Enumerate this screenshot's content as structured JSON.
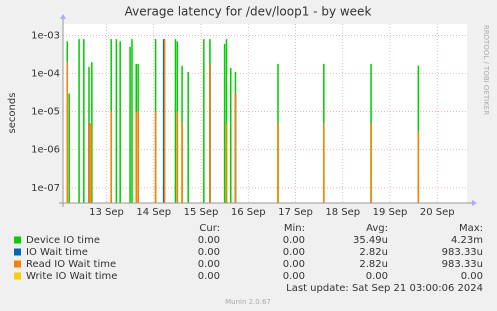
{
  "chart_data": {
    "type": "spike",
    "title": "Average latency for /dev/loop1 - by week",
    "y_label": "seconds",
    "side_text": "RRDTOOL / TOBI OETIKER",
    "log_y": true,
    "grid": true,
    "xlim": [
      12.08,
      20.63
    ],
    "xticks": [
      {
        "value": 13,
        "label": "13 Sep"
      },
      {
        "value": 14,
        "label": "14 Sep"
      },
      {
        "value": 15,
        "label": "15 Sep"
      },
      {
        "value": 16,
        "label": "16 Sep"
      },
      {
        "value": 17,
        "label": "17 Sep"
      },
      {
        "value": 18,
        "label": "18 Sep"
      },
      {
        "value": 19,
        "label": "19 Sep"
      },
      {
        "value": 20,
        "label": "20 Sep"
      }
    ],
    "ylim": [
      4e-08,
      0.002
    ],
    "yticks": [
      {
        "value": 1e-07,
        "label": "1e-07"
      },
      {
        "value": 1e-06,
        "label": "1e-06"
      },
      {
        "value": 1e-05,
        "label": "1e-05"
      },
      {
        "value": 0.0001,
        "label": "1e-04"
      },
      {
        "value": 0.001,
        "label": "1e-03"
      }
    ],
    "series": [
      {
        "name": "Device IO time",
        "color": "#00cc00",
        "x": [
          12.17,
          12.21,
          12.42,
          12.52,
          12.63,
          12.69,
          13.1,
          13.21,
          13.29,
          13.5,
          13.54,
          13.63,
          13.67,
          14.04,
          14.21,
          14.46,
          14.5,
          14.6,
          14.73,
          15.06,
          15.19,
          15.5,
          15.54,
          15.63,
          15.73,
          16.63,
          17.6,
          18.6,
          19.6
        ],
        "values": [
          0.0007,
          3e-05,
          0.0008,
          0.0008,
          0.00015,
          0.0002,
          0.0008,
          0.0008,
          0.0007,
          0.0005,
          0.0008,
          0.00018,
          0.00018,
          0.0008,
          0.0008,
          0.0008,
          0.0007,
          0.00016,
          0.00011,
          0.0008,
          0.0008,
          0.0006,
          0.0008,
          0.00014,
          0.00011,
          0.00018,
          0.00018,
          0.00018,
          0.00016
        ]
      },
      {
        "name": "IO Wait time",
        "color": "#0066b3",
        "x": [
          12.17,
          12.63,
          13.63,
          14.21,
          15.19,
          15.73
        ],
        "values": [
          0.0002,
          5e-06,
          1e-05,
          0.0008,
          0.00018,
          3e-05
        ]
      },
      {
        "name": "Read IO Wait time",
        "color": "#ff8000",
        "x": [
          12.17,
          12.63,
          12.67,
          13.1,
          13.63,
          13.67,
          14.04,
          14.23,
          14.5,
          14.6,
          15.19,
          15.54,
          15.73,
          16.63,
          17.6,
          18.6,
          19.6
        ],
        "values": [
          0.0002,
          5e-06,
          5e-06,
          1e-05,
          1e-05,
          1e-05,
          1e-05,
          0.0008,
          1e-05,
          5e-06,
          0.00018,
          5e-06,
          3e-05,
          5e-06,
          5e-06,
          5e-06,
          3e-06
        ]
      },
      {
        "name": "Write IO Wait time",
        "color": "#ffcc00",
        "x": [],
        "values": []
      }
    ],
    "legend_table": {
      "headers": [
        "Cur:",
        "Min:",
        "Avg:",
        "Max:"
      ],
      "rows": [
        [
          "0.00",
          "0.00",
          "35.49u",
          "4.23m"
        ],
        [
          "0.00",
          "0.00",
          "2.82u",
          "983.33u"
        ],
        [
          "0.00",
          "0.00",
          "2.82u",
          "983.33u"
        ],
        [
          "0.00",
          "0.00",
          "0.00",
          "0.00"
        ]
      ]
    },
    "last_update": "Last update: Sat Sep 21 03:00:06 2024",
    "footer": "Munin 2.0.67"
  }
}
